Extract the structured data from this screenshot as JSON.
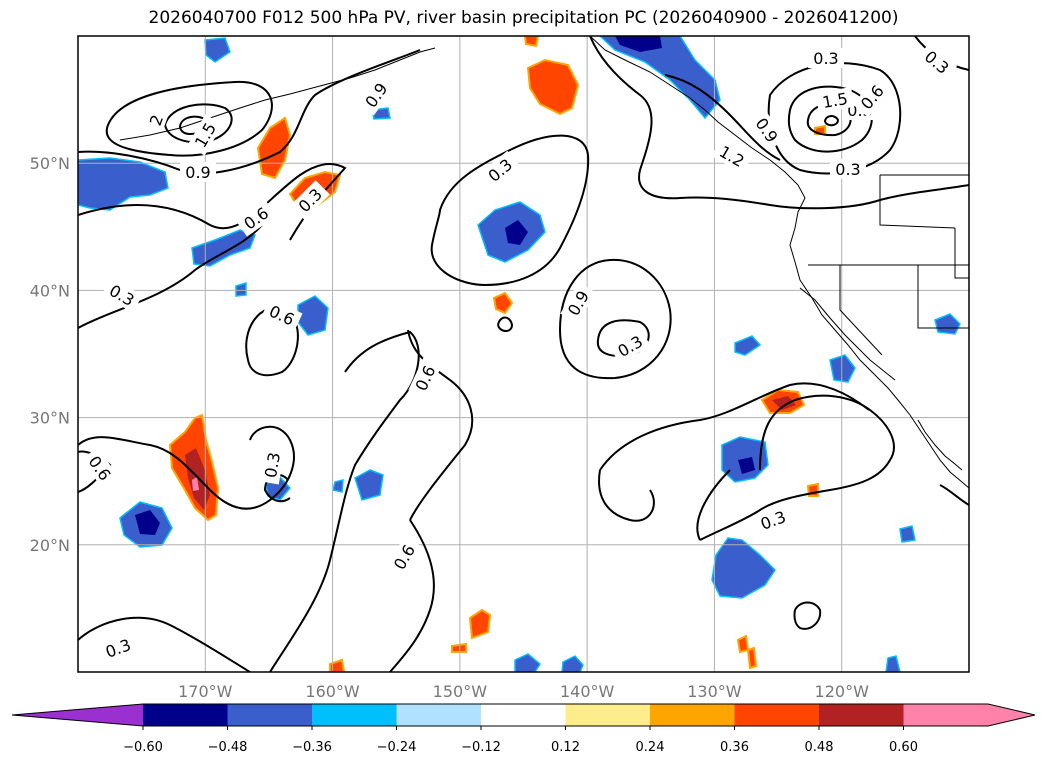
{
  "title": "2026040700 F012 500 hPa PV, river basin precipitation PC (2026040900 - 2026041200)",
  "map": {
    "lon_range": [
      -180,
      -110
    ],
    "lat_range": [
      10,
      60
    ],
    "lat_labels": [
      "20°N",
      "30°N",
      "40°N",
      "50°N"
    ],
    "lon_labels": [
      "170°W",
      "160°W",
      "150°W",
      "140°W",
      "130°W",
      "120°W"
    ],
    "contour_labels": [
      "2",
      "1.5",
      "0.9",
      "0.6",
      "0.3",
      "0.9",
      "0.6",
      "0.3",
      "0.6",
      "0.3",
      "0.6",
      "0.9",
      "0.3",
      "0.3",
      "0.6",
      "0.3",
      "0.3",
      "0.3",
      "0.3",
      "1.5",
      "1.2",
      "0.9",
      "0.6",
      "0.3",
      "0.3"
    ]
  },
  "colorbar": {
    "ticks": [
      "−0.60",
      "−0.48",
      "−0.36",
      "−0.24",
      "−0.12",
      "0.12",
      "0.24",
      "0.36",
      "0.48",
      "0.60"
    ],
    "colors": [
      "#9b30d0",
      "#00008b",
      "#3a5fcd",
      "#00bfff",
      "#b0e2ff",
      "#ffffff",
      "#ffec8b",
      "#ffa500",
      "#ff4500",
      "#b22222",
      "#ff82ab",
      "#ff82ab"
    ]
  },
  "palette": {
    "dark_blue": "#00008b",
    "royal_blue": "#3a5fcd",
    "sky_blue": "#00bfff",
    "light_blue": "#b0e2ff",
    "yellow": "#ffec8b",
    "orange": "#ffa500",
    "red_orange": "#ff4500",
    "dark_red": "#b22222",
    "pink": "#ff82ab"
  }
}
